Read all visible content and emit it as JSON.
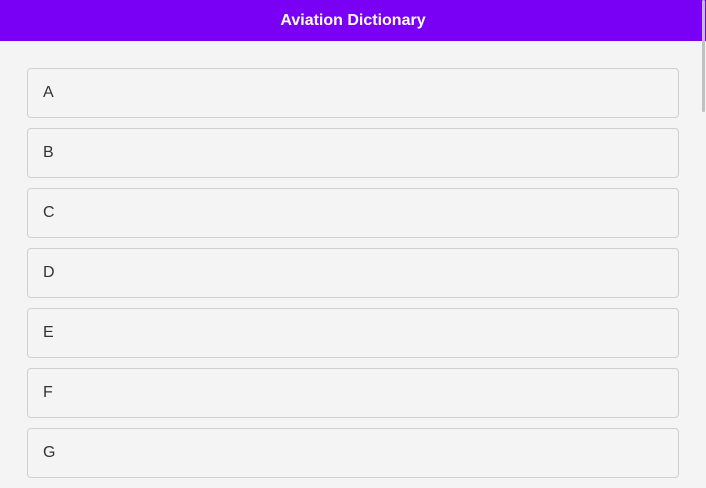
{
  "header": {
    "title": "Aviation Dictionary"
  },
  "colors": {
    "header_bg": "#7a00f5"
  },
  "letters": [
    "A",
    "B",
    "C",
    "D",
    "E",
    "F",
    "G"
  ]
}
